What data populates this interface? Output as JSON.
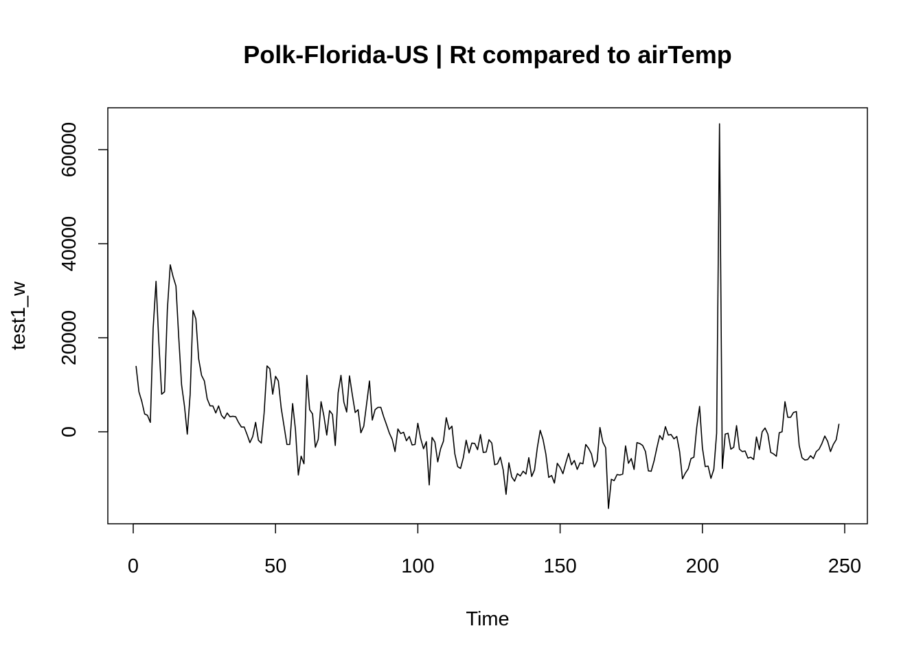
{
  "chart_data": {
    "type": "line",
    "title": "Polk-Florida-US | Rt compared to airTemp",
    "xlabel": "Time",
    "ylabel": "test1_w",
    "xlim": [
      0,
      250
    ],
    "ylim": [
      -19000,
      69000
    ],
    "xticks": [
      0,
      50,
      100,
      150,
      200,
      250
    ],
    "yticks": [
      0,
      20000,
      40000,
      60000
    ],
    "color": "#000000",
    "series": [
      {
        "x": [
          1,
          2,
          3,
          4,
          5,
          6,
          7,
          8,
          9,
          10,
          11,
          12,
          13,
          14,
          15,
          16,
          17,
          18,
          19,
          20,
          21,
          22,
          23,
          24,
          25,
          26,
          27,
          28,
          29,
          30,
          31,
          32,
          33,
          34,
          35,
          36,
          37,
          38,
          39,
          40,
          41,
          42,
          43,
          44,
          45,
          46,
          47,
          48,
          49,
          50,
          51,
          52,
          53,
          54,
          55,
          56,
          57,
          58,
          59,
          60,
          61,
          62,
          63,
          64,
          65,
          66,
          67,
          68,
          69,
          70,
          71,
          72,
          73,
          74,
          75,
          76,
          77,
          78,
          79,
          80,
          81,
          82,
          83,
          84,
          85,
          86,
          87,
          88,
          89,
          90,
          91,
          92,
          93,
          94,
          95,
          96,
          97,
          98,
          99,
          100,
          101,
          102,
          103,
          104,
          105,
          106,
          107,
          108,
          109,
          110,
          111,
          112,
          113,
          114,
          115,
          116,
          117,
          118,
          119,
          120,
          121,
          122,
          123,
          124,
          125,
          126,
          127,
          128,
          129,
          130,
          131,
          132,
          133,
          134,
          135,
          136,
          137,
          138,
          139,
          140,
          141,
          142,
          143,
          144,
          145,
          146,
          147,
          148,
          149,
          150,
          151,
          152,
          153,
          154,
          155,
          156,
          157,
          158,
          159,
          160,
          161,
          162,
          163,
          164,
          165,
          166,
          167,
          168,
          169,
          170,
          171,
          172,
          173,
          174,
          175,
          176,
          177,
          178,
          179,
          180,
          181,
          182,
          183,
          184,
          185,
          186,
          187,
          188,
          189,
          190,
          191,
          192,
          193,
          194,
          195,
          196,
          197,
          198,
          199,
          200,
          201,
          202,
          203,
          204,
          205,
          206,
          207,
          208,
          209,
          210,
          211,
          212,
          213,
          214,
          215,
          216,
          217,
          218,
          219,
          220,
          221,
          222,
          223,
          224,
          225,
          226,
          227,
          228,
          229,
          230,
          231,
          232,
          233,
          234,
          235,
          236,
          237,
          238,
          239,
          240,
          241,
          242,
          243,
          244,
          245,
          246,
          247,
          248
        ],
        "values": [
          14000,
          8500,
          6500,
          3800,
          3500,
          2000,
          22000,
          32000,
          19000,
          8000,
          8500,
          26000,
          35500,
          33000,
          31000,
          20000,
          10000,
          5500,
          -500,
          8000,
          25800,
          24000,
          15500,
          12000,
          10800,
          7000,
          5500,
          5500,
          4000,
          5500,
          3500,
          2800,
          4000,
          3200,
          3300,
          3200,
          2000,
          1000,
          1000,
          -600,
          -2300,
          -1000,
          2000,
          -1800,
          -2400,
          4000,
          14000,
          13400,
          8000,
          11800,
          10800,
          5000,
          1200,
          -2700,
          -2700,
          6000,
          500,
          -9200,
          -5200,
          -6800,
          12000,
          4700,
          3800,
          -3300,
          -1600,
          6400,
          3400,
          -700,
          4500,
          3700,
          -2900,
          8300,
          12000,
          6300,
          4200,
          11900,
          7800,
          4100,
          4700,
          -200,
          1200,
          5900,
          10800,
          2500,
          4700,
          5200,
          5200,
          3200,
          1500,
          -300,
          -1600,
          -4200,
          600,
          -400,
          -100,
          -1900,
          -1000,
          -2800,
          -2700,
          1800,
          -1400,
          -3600,
          -2100,
          -11300,
          -1200,
          -2200,
          -6400,
          -3600,
          -2000,
          3000,
          500,
          1200,
          -4700,
          -7400,
          -7800,
          -5500,
          -1800,
          -4500,
          -2400,
          -2500,
          -3800,
          -600,
          -4400,
          -4300,
          -1700,
          -2400,
          -7000,
          -6800,
          -5400,
          -8100,
          -13300,
          -6600,
          -9600,
          -10500,
          -8900,
          -9400,
          -8400,
          -9000,
          -5500,
          -9500,
          -8100,
          -3400,
          300,
          -1600,
          -4800,
          -9700,
          -9300,
          -10900,
          -6700,
          -7600,
          -8900,
          -6600,
          -4600,
          -7000,
          -6100,
          -8000,
          -6600,
          -6800,
          -2700,
          -3500,
          -4700,
          -7500,
          -6200,
          900,
          -2200,
          -3400,
          -16300,
          -10100,
          -10400,
          -9100,
          -9200,
          -9000,
          -3000,
          -6700,
          -5700,
          -8000,
          -2300,
          -2500,
          -2900,
          -4200,
          -8300,
          -8400,
          -6200,
          -3400,
          -800,
          -1700,
          1100,
          -700,
          -600,
          -1500,
          -1000,
          -4200,
          -10000,
          -8800,
          -7900,
          -5700,
          -5400,
          900,
          5400,
          -3400,
          -7400,
          -7300,
          -9900,
          -8000,
          -300,
          65500,
          -7800,
          -500,
          -300,
          -3700,
          -3300,
          1300,
          -3700,
          -4200,
          -4100,
          -5600,
          -5400,
          -5900,
          -1100,
          -3800,
          0,
          800,
          -500,
          -4400,
          -4700,
          -5200,
          -200,
          0,
          6400,
          3100,
          3100,
          4100,
          4300,
          -2900,
          -5500,
          -6000,
          -5900,
          -5100,
          -5700,
          -4200,
          -3700,
          -2500,
          -900,
          -2000,
          -4200,
          -2700,
          -1700,
          1700
        ]
      }
    ]
  }
}
